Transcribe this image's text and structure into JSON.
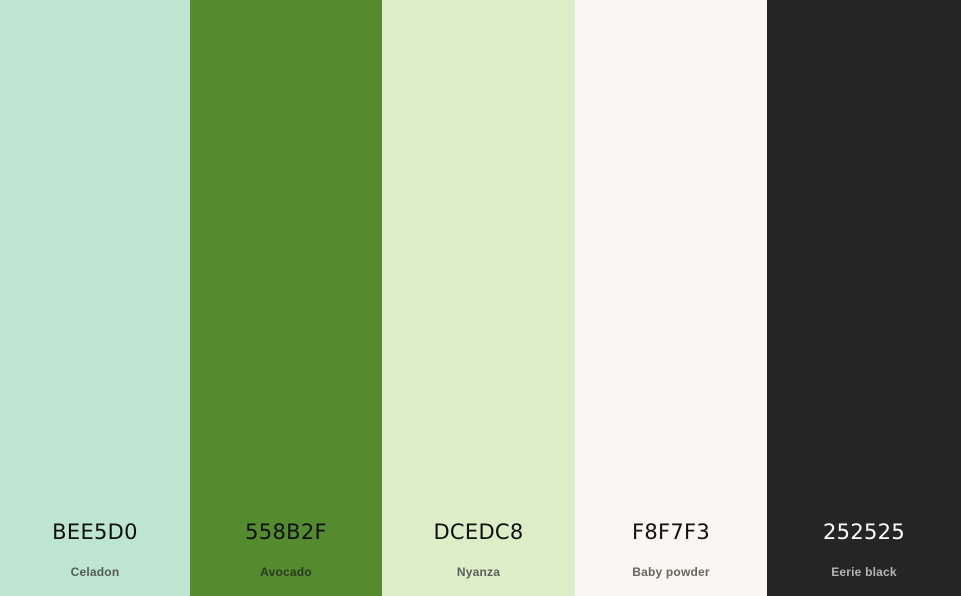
{
  "palette": {
    "colors": [
      {
        "hex": "BEE5D0",
        "name": "Celadon",
        "swatch": "#BEE5D0",
        "hex_color": "#0f0f0f",
        "name_color": "#555a57"
      },
      {
        "hex": "558B2F",
        "name": "Avocado",
        "swatch": "#558B2F",
        "hex_color": "#0f0f0f",
        "name_color": "#2b3a20"
      },
      {
        "hex": "DCEDC8",
        "name": "Nyanza",
        "swatch": "#DCEDC8",
        "hex_color": "#0f0f0f",
        "name_color": "#5b6057"
      },
      {
        "hex": "F8F7F3",
        "name": "Baby powder",
        "swatch": "#F8F7F3",
        "hex_color": "#0f0f0f",
        "name_color": "#66665f"
      },
      {
        "hex": "252525",
        "name": "Eerie black",
        "swatch": "#252525",
        "hex_color": "#ffffff",
        "name_color": "#b5b5b5"
      }
    ]
  }
}
